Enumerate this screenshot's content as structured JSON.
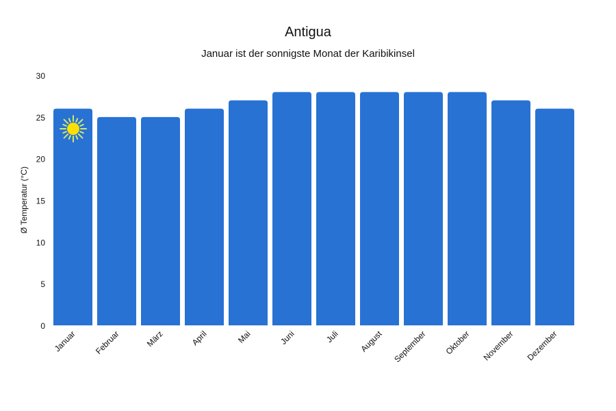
{
  "chart_data": {
    "type": "bar",
    "title": "Antigua",
    "subtitle": "Januar ist der sonnigste Monat der Karibikinsel",
    "xlabel": "",
    "ylabel": "Ø Temperatur (°C)",
    "ylim": [
      0,
      30
    ],
    "yticks": [
      0,
      5,
      10,
      15,
      20,
      25,
      30
    ],
    "grid": false,
    "categories": [
      "Januar",
      "Februar",
      "März",
      "April",
      "Mai",
      "Juni",
      "Juli",
      "August",
      "September",
      "Oktober",
      "November",
      "Dezember"
    ],
    "values": [
      26,
      25,
      25,
      26,
      27,
      28,
      28,
      28,
      28,
      28,
      27,
      26
    ],
    "bar_color": "#2872d4",
    "annotation": {
      "icon": "sun-icon",
      "category": "Januar",
      "color": "#ffe000",
      "ray_color": "#d4e86a"
    }
  }
}
